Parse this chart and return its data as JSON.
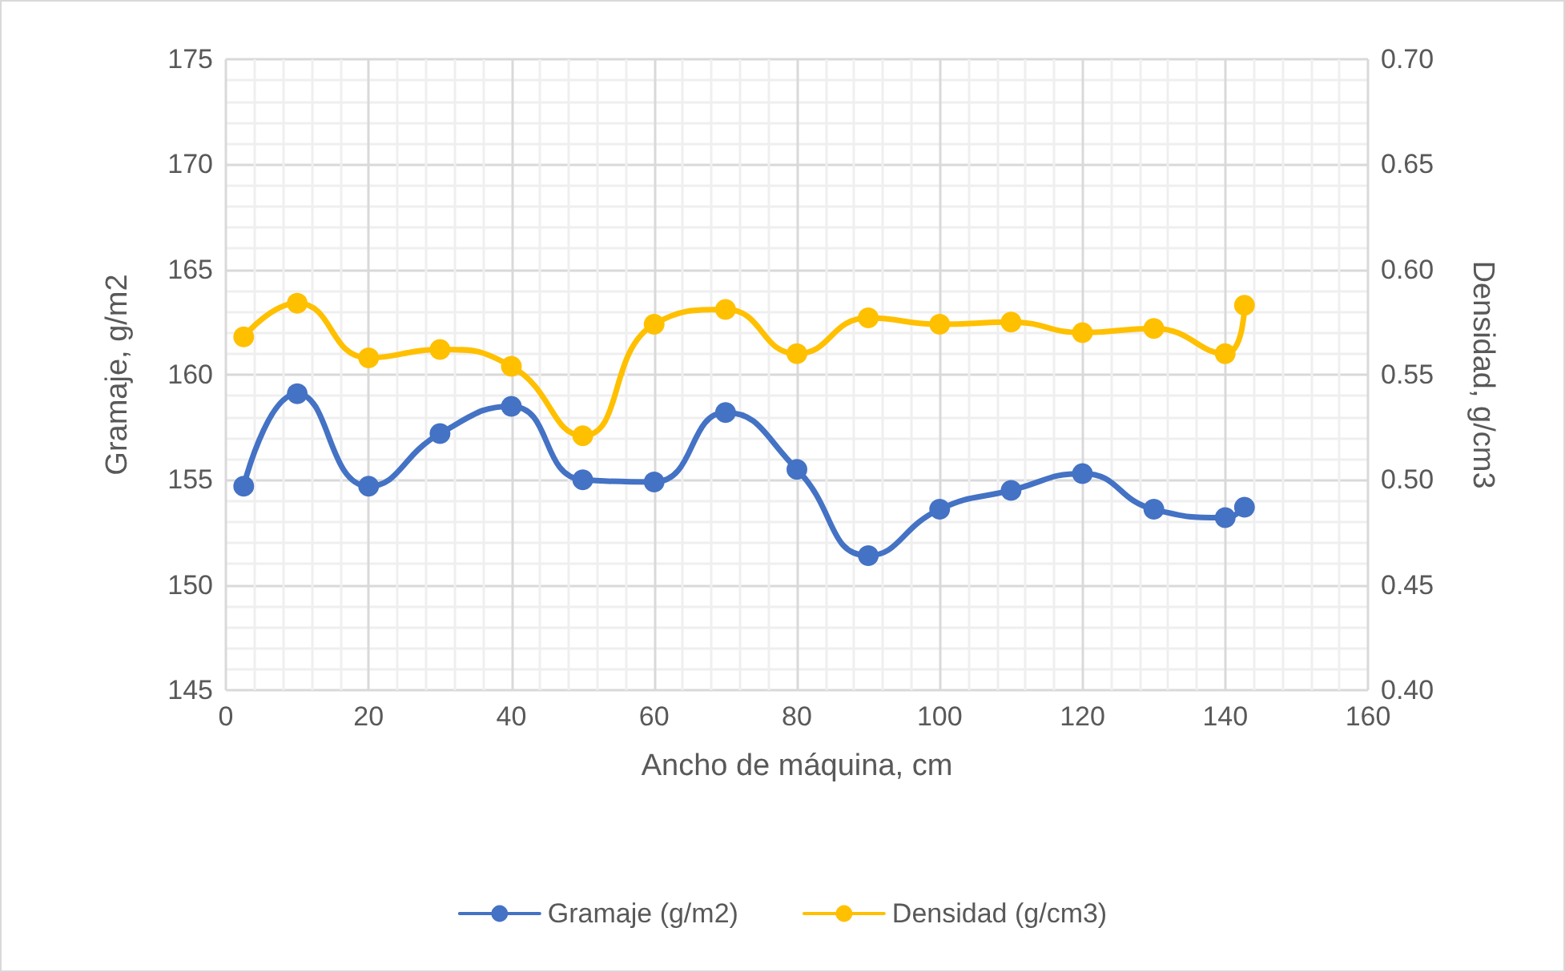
{
  "chart_data": {
    "type": "line",
    "xlabel": "Ancho de máquina, cm",
    "ylabel": "Gramaje, g/m2",
    "y2label": "Densidad, g/cm3",
    "x": [
      2.5,
      10,
      20,
      30,
      40,
      50,
      60,
      70,
      80,
      90,
      100,
      110,
      120,
      130,
      140,
      142.7
    ],
    "series": [
      {
        "name": "Gramaje (g/m2)",
        "color": "#4472c4",
        "values": [
          154.7,
          159.1,
          154.7,
          157.2,
          158.5,
          155.0,
          154.9,
          158.2,
          155.5,
          151.4,
          153.6,
          154.5,
          155.3,
          153.6,
          153.2,
          153.7
        ]
      },
      {
        "name": "Densidad (g/cm3)",
        "color": "#ffc000",
        "axis": "y2",
        "values": [
          0.568,
          0.584,
          0.558,
          0.562,
          0.554,
          0.521,
          0.574,
          0.581,
          0.56,
          0.577,
          0.574,
          0.575,
          0.57,
          0.572,
          0.56,
          0.583
        ]
      }
    ],
    "xlim": [
      0,
      160
    ],
    "xticks": [
      0,
      20,
      40,
      60,
      80,
      100,
      120,
      140,
      160
    ],
    "ylim": [
      145,
      175
    ],
    "yticks": [
      145,
      150,
      155,
      160,
      165,
      170,
      175
    ],
    "y2lim": [
      0.4,
      0.7
    ],
    "y2ticks": [
      {
        "value": 0.4,
        "label": "0.40"
      },
      {
        "value": 0.45,
        "label": "0.45"
      },
      {
        "value": 0.5,
        "label": "0.50"
      },
      {
        "value": 0.55,
        "label": "0.55"
      },
      {
        "value": 0.6,
        "label": "0.60"
      },
      {
        "value": 0.65,
        "label": "0.65"
      },
      {
        "value": 0.7,
        "label": "0.70"
      }
    ],
    "grid": true,
    "legend": "bottom",
    "marker": "circle",
    "line_style": "solid"
  }
}
